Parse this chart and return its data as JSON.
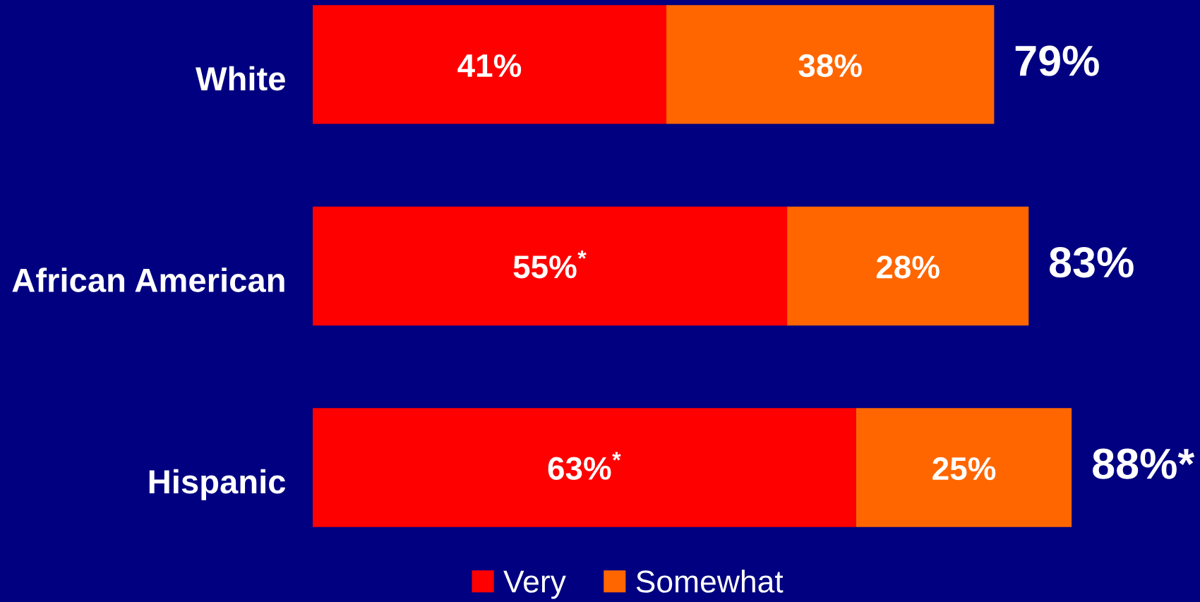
{
  "chart_data": {
    "type": "bar",
    "orientation": "horizontal",
    "stacked": true,
    "categories": [
      "White",
      "African American",
      "Hispanic"
    ],
    "series": [
      {
        "name": "Very",
        "color": "#ff0000",
        "values": [
          41,
          55,
          63
        ],
        "value_labels": [
          "41%",
          "55%$^{*}$",
          "63%$^{*}$"
        ]
      },
      {
        "name": "Somewhat",
        "color": "#ff6600",
        "values": [
          38,
          28,
          25
        ],
        "value_labels": [
          "38%",
          "28%",
          "25%"
        ]
      }
    ],
    "totals": [
      "79%",
      "83%",
      "88%*"
    ],
    "tick_labels": "y",
    "legend": "bottom",
    "grid": false
  }
}
